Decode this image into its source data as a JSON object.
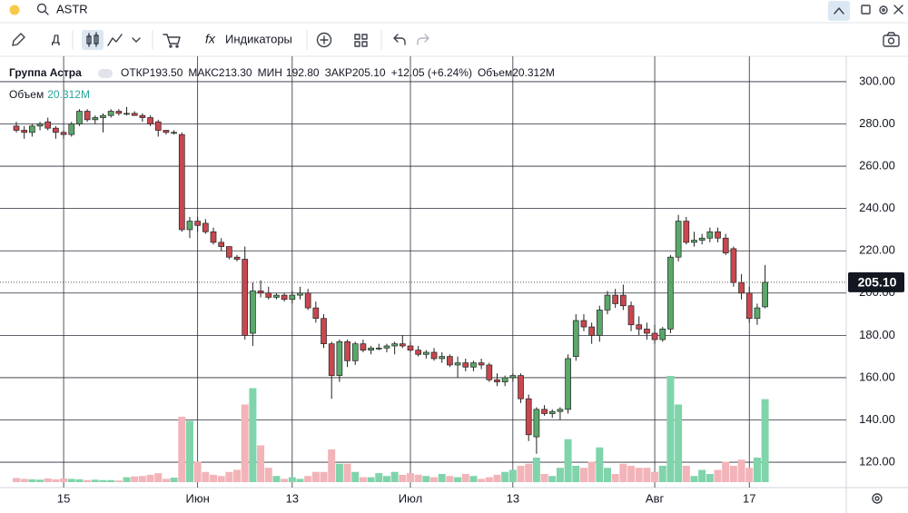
{
  "ui": {
    "search": "ASTR",
    "toolbar": {
      "interval": "Д",
      "indicators": "Индикаторы"
    },
    "legend": {
      "name": "Группа Астра",
      "open_label": "ОТКР",
      "open": "193.50",
      "high_label": "МАКС",
      "high": "213.30",
      "low_label": "МИН",
      "low": "192.80",
      "close_label": "ЗАКР",
      "close": "205.10",
      "change": "+12.05 (+6.24%)",
      "volume_label": "Объем",
      "volume": "20.312M"
    }
  },
  "chart_data": {
    "type": "candlestick",
    "categories": [
      null,
      null,
      null,
      null,
      null,
      null,
      "15",
      null,
      null,
      null,
      null,
      null,
      null,
      null,
      null,
      null,
      null,
      null,
      null,
      null,
      null,
      null,
      null,
      "Июн",
      null,
      null,
      null,
      null,
      null,
      null,
      null,
      null,
      null,
      null,
      null,
      "13",
      null,
      null,
      null,
      null,
      null,
      null,
      null,
      null,
      null,
      null,
      null,
      null,
      null,
      null,
      "Июл",
      null,
      null,
      null,
      null,
      null,
      null,
      null,
      null,
      null,
      null,
      null,
      null,
      "13",
      null,
      null,
      null,
      null,
      null,
      null,
      null,
      null,
      null,
      null,
      null,
      null,
      null,
      null,
      null,
      null,
      null,
      "Авг",
      null,
      null,
      null,
      null,
      null,
      null,
      null,
      null,
      null,
      null,
      null,
      "17",
      null,
      null
    ],
    "open": [
      279,
      277,
      276,
      279,
      281,
      278,
      276,
      275,
      280,
      286,
      282,
      283,
      284,
      286,
      285,
      285,
      284,
      283,
      281,
      277,
      276,
      275,
      230,
      234,
      233,
      229,
      224,
      222,
      217,
      216,
      181,
      201,
      200,
      198,
      199,
      197,
      199,
      200,
      193,
      188,
      176,
      161,
      177,
      168,
      176,
      173,
      174,
      174,
      175,
      176,
      175,
      173,
      171,
      172,
      169,
      170,
      166,
      167,
      165,
      167,
      166,
      159,
      158,
      160,
      161,
      150,
      132,
      145,
      143,
      144,
      145,
      170,
      187,
      184,
      180,
      192,
      199,
      199,
      194,
      185,
      183,
      181,
      178,
      183,
      217,
      234,
      224,
      225,
      226,
      229,
      226,
      221,
      205,
      200,
      188,
      193.5
    ],
    "high": [
      281,
      279,
      280,
      281,
      283,
      279,
      277,
      281,
      287,
      287,
      284,
      285,
      287,
      287,
      288,
      286,
      285,
      284,
      282,
      277,
      277,
      276,
      236,
      236,
      235,
      231,
      226,
      222,
      218,
      222,
      205,
      206,
      203,
      200,
      200,
      201,
      203,
      202,
      196,
      190,
      177,
      178,
      178,
      177,
      178,
      175,
      176,
      176,
      177,
      180,
      177,
      175,
      173,
      174,
      172,
      171,
      170,
      169,
      168,
      169,
      167,
      162,
      161,
      162,
      162,
      152,
      146,
      147,
      145,
      146,
      171,
      190,
      190,
      186,
      194,
      201,
      202,
      204,
      196,
      189,
      186,
      185,
      184,
      218,
      237,
      236,
      229,
      228,
      231,
      231,
      228,
      222,
      209,
      203,
      195,
      213.3
    ],
    "low": [
      276,
      273,
      274,
      277,
      277,
      273,
      273,
      274,
      279,
      281,
      280,
      276,
      283,
      284,
      284,
      284,
      281,
      279,
      274,
      275,
      275,
      229,
      226,
      229,
      228,
      223,
      220,
      216,
      215,
      178,
      175,
      198,
      197,
      197,
      196,
      195,
      197,
      192,
      186,
      174,
      150,
      158,
      165,
      166,
      172,
      171,
      173,
      172,
      171,
      174,
      172,
      170,
      169,
      168,
      167,
      165,
      160,
      163,
      163,
      164,
      158,
      156,
      156,
      158,
      148,
      130,
      124,
      142,
      141,
      140,
      143,
      168,
      182,
      176,
      177,
      190,
      193,
      192,
      182,
      180,
      178,
      176,
      177,
      181,
      215,
      223,
      222,
      223,
      224,
      224,
      218,
      203,
      197,
      186,
      185,
      192.8
    ],
    "close": [
      277,
      276,
      279,
      280,
      278,
      276,
      275,
      280,
      286,
      282,
      283,
      284,
      286,
      285,
      285,
      284,
      283,
      280,
      277,
      276,
      276,
      230,
      234,
      232,
      229,
      224,
      222,
      217,
      216,
      180,
      201,
      200,
      198,
      199,
      197,
      199,
      200,
      193,
      188,
      176,
      161,
      177,
      168,
      176,
      173,
      174,
      174,
      175,
      176,
      175,
      173,
      171,
      172,
      169,
      170,
      166,
      167,
      165,
      167,
      166,
      159,
      158,
      160,
      161,
      150,
      133,
      145,
      143,
      144,
      145,
      169,
      187,
      184,
      180,
      192,
      199,
      195,
      194,
      185,
      183,
      181,
      178,
      183,
      217,
      234,
      224,
      225,
      226,
      229,
      226,
      219,
      205,
      200,
      188,
      193,
      205.1
    ],
    "volume": [
      1,
      0.8,
      0.7,
      0.6,
      0.9,
      0.7,
      0.9,
      0.8,
      0.7,
      0.5,
      0.6,
      0.5,
      0.5,
      0.4,
      1.2,
      1.4,
      1.5,
      1.8,
      2.2,
      0.8,
      1.1,
      16,
      15,
      5,
      2.5,
      1.8,
      1.5,
      2.5,
      3,
      19,
      23,
      9,
      3.5,
      1.5,
      0.8,
      1.2,
      0.8,
      1.5,
      2.5,
      2.5,
      8,
      4.5,
      4.5,
      2.5,
      1.2,
      1.2,
      2.2,
      1.5,
      2.5,
      1.8,
      2.2,
      1.8,
      1.5,
      1.2,
      2,
      1.5,
      1.2,
      2,
      1.5,
      0.8,
      1.2,
      1.8,
      2.5,
      3,
      4,
      4.5,
      6,
      2,
      1.5,
      3.5,
      10.5,
      4,
      3.5,
      5,
      8.5,
      3.5,
      2,
      4.5,
      4,
      3.5,
      3.5,
      2.5,
      4,
      26,
      19,
      4,
      1.5,
      3,
      2,
      3,
      5,
      4,
      5.5,
      3.5,
      6,
      20.312
    ],
    "up_color": "#5aa86a",
    "down_color": "#c9474f",
    "volume_up_color": "#80d4ab",
    "volume_down_color": "#f2b4b8",
    "ylim": [
      108,
      312
    ],
    "yticks": [
      {
        "value": 120,
        "label": "120.00"
      },
      {
        "value": 140,
        "label": "140.00"
      },
      {
        "value": 160,
        "label": "160.00"
      },
      {
        "value": 180,
        "label": "180.00"
      },
      {
        "value": 200,
        "label": "200.00"
      },
      {
        "value": 220,
        "label": "220.00"
      },
      {
        "value": 240,
        "label": "240.00"
      },
      {
        "value": 260,
        "label": "260.00"
      },
      {
        "value": 280,
        "label": "280.00"
      },
      {
        "value": 300,
        "label": "300.00"
      }
    ],
    "grid": true
  }
}
